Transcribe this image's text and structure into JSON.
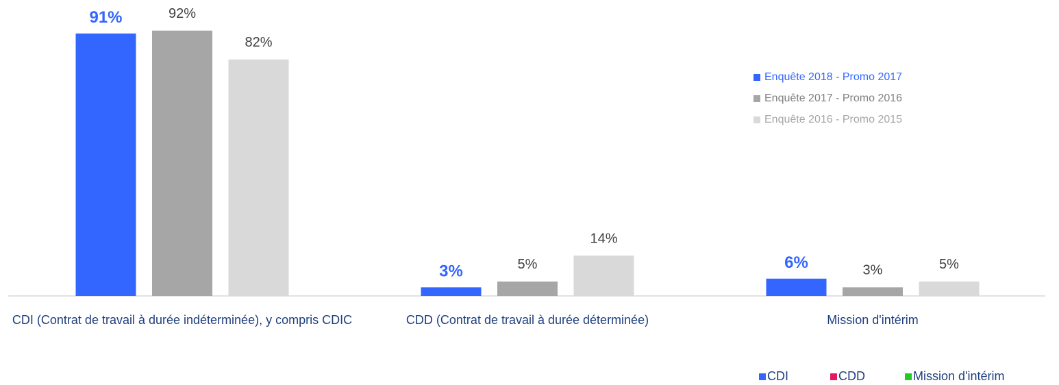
{
  "chart_data": {
    "type": "bar",
    "categories": [
      "CDI (Contrat de travail à durée indéterminée), y compris CDIC",
      "CDD (Contrat de travail à durée déterminée)",
      "Mission d'intérim"
    ],
    "series": [
      {
        "name": "Enquête 2018 - Promo 2017",
        "color": "#3366ff",
        "values": [
          91,
          3,
          6
        ],
        "value_labels": [
          "91%",
          "3%",
          "6%"
        ]
      },
      {
        "name": "Enquête 2017 - Promo 2016",
        "color": "#a6a6a6",
        "values": [
          92,
          5,
          3
        ],
        "value_labels": [
          "92%",
          "5%",
          "3%"
        ]
      },
      {
        "name": "Enquête 2016 - Promo 2015",
        "color": "#d9d9d9",
        "values": [
          82,
          14,
          5
        ],
        "value_labels": [
          "82%",
          "14%",
          "5%"
        ]
      }
    ],
    "ylim": [
      0,
      100
    ],
    "legend": "top-right",
    "legend2": [
      {
        "name": "CDI",
        "color": "#3366ff"
      },
      {
        "name": "CDD",
        "color": "#e8175d"
      },
      {
        "name": "Mission d'intérim",
        "color": "#22cc22"
      }
    ]
  }
}
